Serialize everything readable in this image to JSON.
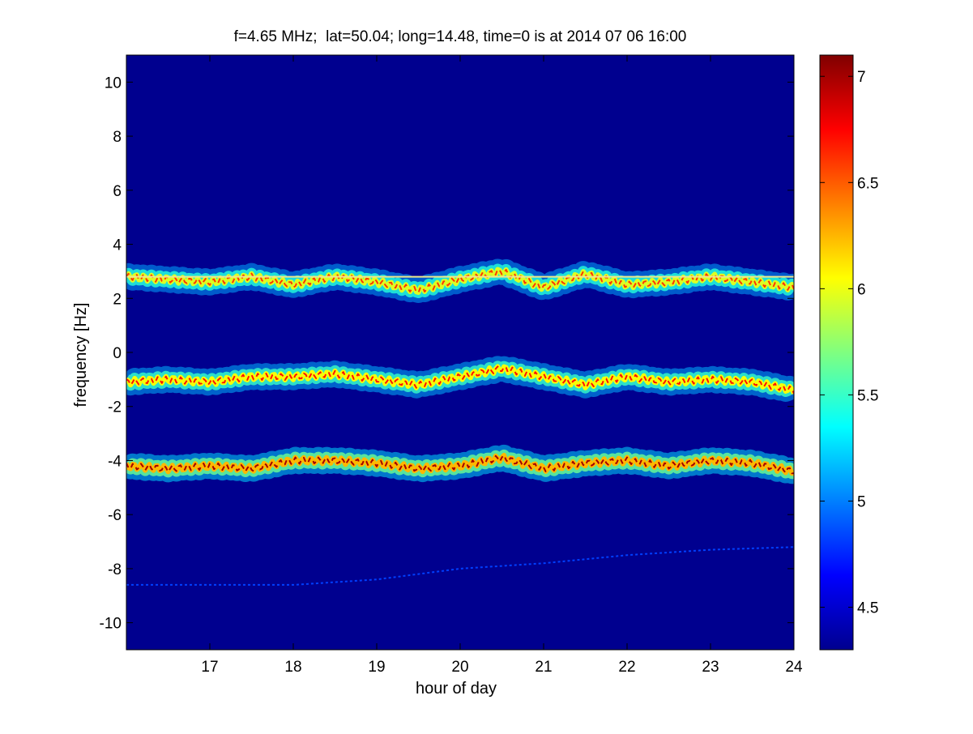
{
  "chart_data": {
    "type": "heatmap",
    "title": "f=4.65 MHz;  lat=50.04; long=14.48, time=0 is at 2014 07 06 16:00",
    "xlabel": "hour of day",
    "ylabel": "frequency [Hz]",
    "xlim": [
      16,
      24
    ],
    "ylim": [
      -11,
      11
    ],
    "x_ticks": [
      "17",
      "18",
      "19",
      "20",
      "21",
      "22",
      "23",
      "24"
    ],
    "y_ticks": [
      "10",
      "8",
      "6",
      "4",
      "2",
      "0",
      "-2",
      "-4",
      "-6",
      "-8",
      "-10"
    ],
    "colorbar": {
      "range": [
        4.3,
        7.1
      ],
      "ticks": [
        "7",
        "6.5",
        "6",
        "5.5",
        "5",
        "4.5"
      ],
      "colormap": "jet"
    },
    "background_value": 4.3,
    "traces": [
      {
        "name": "",
        "x": [
          16.0,
          16.5,
          17.0,
          17.5,
          18.0,
          18.5,
          19.0,
          19.5,
          20.0,
          20.5,
          21.0,
          21.5,
          22.0,
          22.5,
          23.0,
          23.5,
          24.0
        ],
        "y": [
          2.8,
          2.7,
          2.6,
          2.8,
          2.5,
          2.8,
          2.6,
          2.3,
          2.7,
          3.0,
          2.4,
          2.9,
          2.5,
          2.6,
          2.8,
          2.6,
          2.4
        ],
        "peak": 6.6
      },
      {
        "name": "",
        "x": [
          16.0,
          16.5,
          17.0,
          17.5,
          18.0,
          18.5,
          19.0,
          19.5,
          20.0,
          20.5,
          21.0,
          21.5,
          22.0,
          22.5,
          23.0,
          23.5,
          24.0
        ],
        "y": [
          -1.1,
          -1.0,
          -1.1,
          -0.9,
          -0.9,
          -0.8,
          -1.0,
          -1.2,
          -0.9,
          -0.6,
          -0.9,
          -1.2,
          -0.9,
          -1.1,
          -1.0,
          -1.1,
          -1.4
        ],
        "peak": 6.7
      },
      {
        "name": "",
        "x": [
          16.0,
          16.5,
          17.0,
          17.5,
          18.0,
          18.5,
          19.0,
          19.5,
          20.0,
          20.5,
          21.0,
          21.5,
          22.0,
          22.5,
          23.0,
          23.5,
          24.0
        ],
        "y": [
          -4.2,
          -4.3,
          -4.2,
          -4.3,
          -4.0,
          -4.0,
          -4.1,
          -4.3,
          -4.2,
          -3.9,
          -4.3,
          -4.1,
          -4.0,
          -4.2,
          -4.0,
          -4.1,
          -4.4
        ],
        "peak": 7.0
      },
      {
        "name": "",
        "x": [
          16.0,
          17.0,
          18.0,
          19.0,
          20.0,
          21.0,
          22.0,
          23.0,
          24.0
        ],
        "y": [
          -8.6,
          -8.6,
          -8.6,
          -8.4,
          -8.0,
          -7.8,
          -7.5,
          -7.3,
          -7.2
        ],
        "peak": 4.6
      }
    ],
    "reference_line": {
      "y": 2.8,
      "color": "#f0e68c"
    },
    "grid": false,
    "legend": "none"
  },
  "colors": {
    "background": "#ffffff",
    "axes_fill": "#00008f",
    "reference_line": "#f0e68c"
  }
}
